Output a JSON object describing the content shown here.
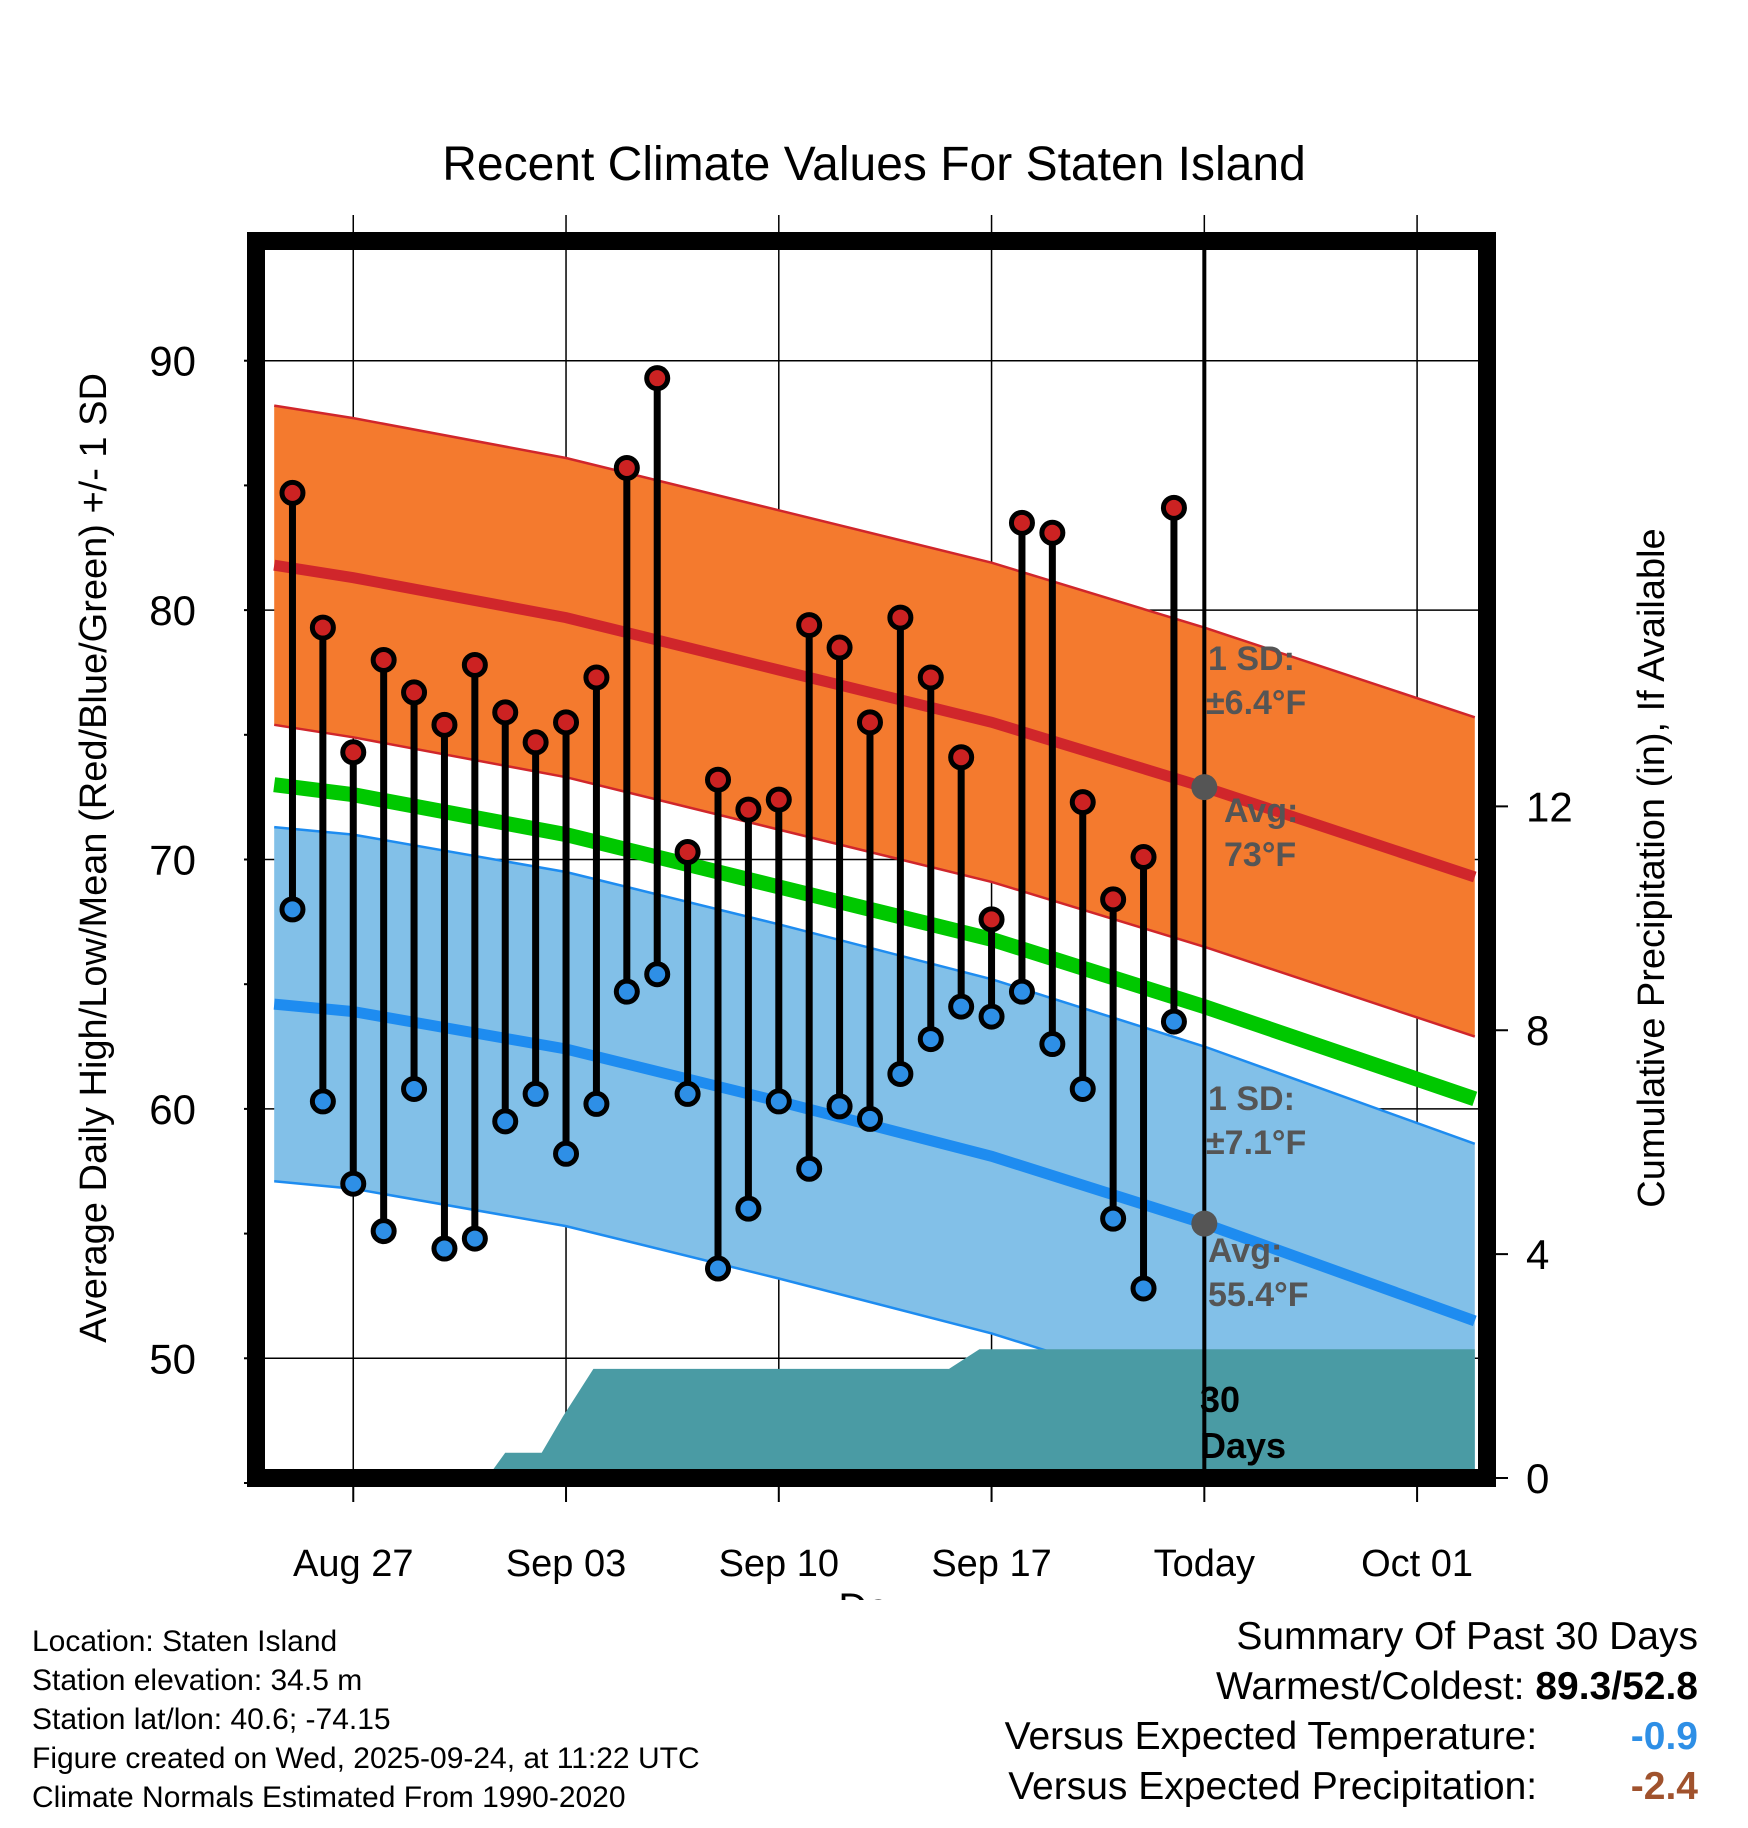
{
  "chart_data": {
    "type": "line",
    "title": "Recent Climate Values For Staten Island",
    "xlabel": "Day",
    "ylabel": "Average Daily High/Low/Mean (Red/Blue/Green) +/- 1 SD",
    "y2label": "Cumulative Precipitation (in), If Available",
    "xlim": [
      -3.2,
      37.3
    ],
    "ylim": [
      45.2,
      94.8
    ],
    "y2lim": [
      0,
      22.1
    ],
    "x_tick_labels": [
      {
        "x": 0,
        "label": "Aug 27"
      },
      {
        "x": 7,
        "label": "Sep 03"
      },
      {
        "x": 14,
        "label": "Sep 10"
      },
      {
        "x": 21,
        "label": "Sep 17"
      },
      {
        "x": 28,
        "label": "Today"
      },
      {
        "x": 35,
        "label": "Oct 01"
      }
    ],
    "y_ticks_major": [
      50,
      60,
      70,
      80,
      90
    ],
    "y_ticks_minor": [
      45,
      55,
      65,
      75,
      85
    ],
    "y2_ticks": [
      0,
      4,
      8,
      12
    ],
    "today_x": 28,
    "days": [
      -2,
      -1,
      0,
      1,
      2,
      3,
      4,
      5,
      6,
      7,
      8,
      9,
      10,
      11,
      12,
      13,
      14,
      15,
      16,
      17,
      18,
      19,
      20,
      21,
      22,
      23,
      24,
      25,
      26,
      27
    ],
    "highs": [
      84.7,
      79.3,
      74.3,
      78.0,
      76.7,
      75.4,
      77.8,
      75.9,
      74.7,
      75.5,
      77.3,
      85.7,
      89.3,
      70.3,
      73.2,
      72.0,
      72.4,
      79.4,
      78.5,
      75.5,
      79.7,
      77.3,
      74.1,
      67.6,
      83.5,
      83.1,
      72.3,
      68.4,
      70.1,
      84.1
    ],
    "lows": [
      68.0,
      60.3,
      57.0,
      55.1,
      60.8,
      54.4,
      54.8,
      59.5,
      60.6,
      58.2,
      60.2,
      64.7,
      65.4,
      60.6,
      53.6,
      56.0,
      60.3,
      57.6,
      60.1,
      59.6,
      61.4,
      62.8,
      64.1,
      63.7,
      64.7,
      62.6,
      60.8,
      55.6,
      52.8,
      63.5
    ],
    "normal_high": {
      "x": [
        -2.6,
        0,
        7,
        14,
        21,
        28,
        36.9
      ],
      "values": [
        81.8,
        81.3,
        79.7,
        77.6,
        75.5,
        72.9,
        69.3
      ],
      "sd": 6.4
    },
    "normal_low": {
      "x": [
        -2.6,
        0,
        7,
        14,
        21,
        28,
        36.9
      ],
      "values": [
        64.2,
        63.9,
        62.4,
        60.3,
        58.1,
        55.4,
        51.5
      ],
      "sd": 7.1
    },
    "normal_mean": {
      "x": [
        -2.6,
        0,
        7,
        14,
        21,
        28,
        36.9
      ],
      "values": [
        73.0,
        72.6,
        71.0,
        68.9,
        66.8,
        64.1,
        60.4
      ]
    },
    "precip_cumulative": {
      "x": [
        -2.6,
        4.4,
        5.0,
        6.2,
        6.9,
        7.9,
        8.9,
        19.6,
        20.6,
        36.9
      ],
      "values": [
        0,
        0,
        0.45,
        0.45,
        1.1,
        1.95,
        1.95,
        1.95,
        2.3,
        2.3
      ]
    },
    "annotations": {
      "high_sd_label": "1 SD:",
      "high_sd_value": "±6.4°F",
      "high_avg_label": "Avg:",
      "high_avg_value": "73°F",
      "low_sd_label": "1 SD:",
      "low_sd_value": "±7.1°F",
      "low_avg_label": "Avg:",
      "low_avg_value": "55.4°F",
      "period_label_1": "30",
      "period_label_2": "Days"
    },
    "colors": {
      "high_band": "#f47a2e",
      "high_line": "#d0262b",
      "low_band": "#82c0e8",
      "low_line": "#1e8cf0",
      "mean_line": "#00c800",
      "precip": "#4a9ba4",
      "high_marker": "#cc2222",
      "low_marker": "#2e8fe6",
      "avg_marker": "#555555",
      "annotation_text": "#555555"
    }
  },
  "footer": {
    "location": "Location: Staten Island",
    "elevation": "Station elevation: 34.5 m",
    "latlon": "Station lat/lon: 40.6; -74.15",
    "created": "Figure created on Wed, 2025-09-24, at 11:22 UTC",
    "normals": "Climate Normals Estimated From 1990-2020"
  },
  "summary": {
    "title": "Summary Of Past 30 Days",
    "warmest_coldest_label": "Warmest/Coldest:",
    "warmest_coldest_value": "89.3/52.8",
    "temp_label": "Versus Expected Temperature:",
    "temp_value": "-0.9",
    "temp_color": "#2e8fe6",
    "precip_label": "Versus Expected Precipitation:",
    "precip_value": "-2.4",
    "precip_color": "#a0522d"
  }
}
